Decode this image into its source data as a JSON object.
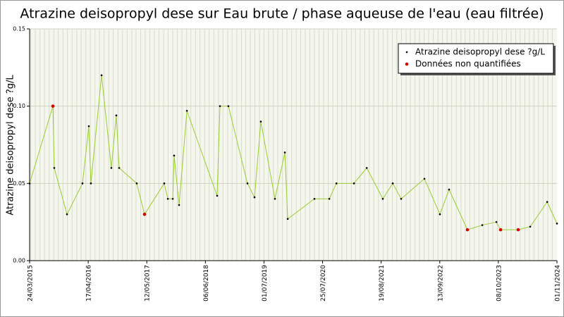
{
  "chart_data": {
    "type": "line",
    "title": "Atrazine deisopropyl dese sur Eau brute / phase aqueuse de l'eau (eau filtrée)",
    "y_label": "Atrazine deisopropyl dese ?g/L",
    "xlim": [
      "2015-03-24",
      "2024-11-01"
    ],
    "xticks": [
      {
        "value": "2015-03-24",
        "label": "24/03/2015"
      },
      {
        "value": "2016-04-17",
        "label": "17/04/2016"
      },
      {
        "value": "2017-05-12",
        "label": "12/05/2017"
      },
      {
        "value": "2018-06-06",
        "label": "06/06/2018"
      },
      {
        "value": "2019-07-01",
        "label": "01/07/2019"
      },
      {
        "value": "2020-07-25",
        "label": "25/07/2020"
      },
      {
        "value": "2021-08-19",
        "label": "19/08/2021"
      },
      {
        "value": "2022-09-13",
        "label": "13/09/2022"
      },
      {
        "value": "2023-10-08",
        "label": "08/10/2023"
      },
      {
        "value": "2024-11-01",
        "label": "01/11/2024"
      }
    ],
    "ylim": [
      0,
      0.15
    ],
    "yticks": [
      {
        "value": 0,
        "label": "0.00"
      },
      {
        "value": 0.05,
        "label": "0.05"
      },
      {
        "value": 0.1,
        "label": "0.10"
      },
      {
        "value": 0.15,
        "label": "0.15"
      }
    ],
    "grid": true,
    "legend": "upper right",
    "series": [
      {
        "name": "Atrazine deisopropyl dese ?g/L",
        "color": "#000000",
        "line_color": "#9acd32",
        "x": [
          "2015-03-24",
          "2015-08-26",
          "2015-09-04",
          "2015-11-28",
          "2016-03-10",
          "2016-04-21",
          "2016-05-05",
          "2016-07-15",
          "2016-09-18",
          "2016-10-21",
          "2016-11-09",
          "2017-03-06",
          "2017-04-27",
          "2017-09-05",
          "2017-09-29",
          "2017-11-01",
          "2017-11-10",
          "2017-12-13",
          "2018-02-03",
          "2018-08-23",
          "2018-09-11",
          "2018-11-06",
          "2019-03-13",
          "2019-04-29",
          "2019-06-10",
          "2019-09-12",
          "2019-11-17",
          "2019-12-06",
          "2020-06-01",
          "2020-09-08",
          "2020-10-25",
          "2021-02-19",
          "2021-05-15",
          "2021-08-30",
          "2021-11-04",
          "2021-12-30",
          "2022-06-03",
          "2022-09-14",
          "2022-11-14",
          "2023-03-16",
          "2023-06-23",
          "2023-09-25",
          "2023-10-23",
          "2024-02-17",
          "2024-05-07",
          "2024-08-28",
          "2024-11-01"
        ],
        "values": [
          0.05,
          0.1,
          0.06,
          0.03,
          0.05,
          0.087,
          0.05,
          0.12,
          0.06,
          0.094,
          0.06,
          0.05,
          0.03,
          0.05,
          0.04,
          0.04,
          0.068,
          0.036,
          0.097,
          0.042,
          0.1,
          0.1,
          0.05,
          0.041,
          0.09,
          0.04,
          0.07,
          0.027,
          0.04,
          0.04,
          0.05,
          0.05,
          0.06,
          0.04,
          0.05,
          0.04,
          0.053,
          0.03,
          0.046,
          0.02,
          0.023,
          0.025,
          0.02,
          0.02,
          0.022,
          0.038,
          0.024
        ]
      },
      {
        "name": "Données non quantifiées",
        "color": "#dd0000",
        "x": [
          "2015-08-26",
          "2017-04-27",
          "2023-03-16",
          "2023-10-23",
          "2024-02-17"
        ],
        "values": [
          0.1,
          0.03,
          0.02,
          0.02,
          0.02
        ]
      }
    ]
  }
}
